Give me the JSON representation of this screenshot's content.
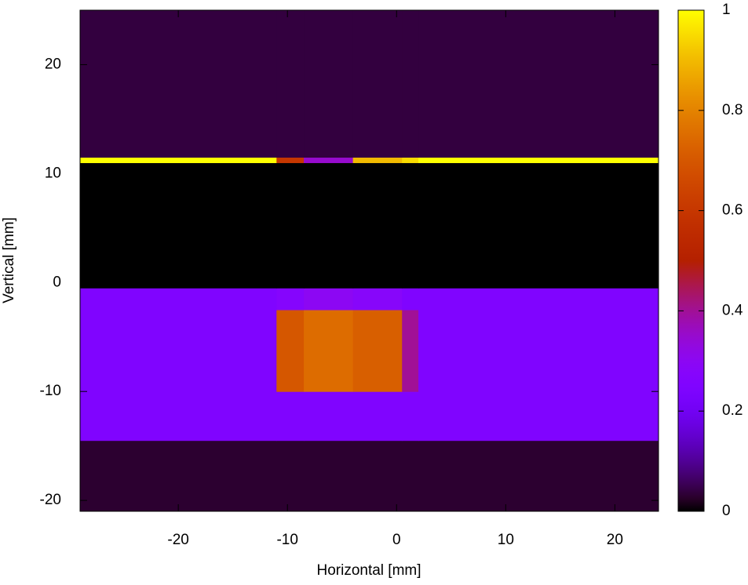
{
  "chart_data": {
    "type": "heatmap",
    "x_label": "Horizontal [mm]",
    "y_label": "Vertical [mm]",
    "x_edges": [
      -29,
      -11,
      -8.5,
      -4,
      0.5,
      2,
      24
    ],
    "y_edges": [
      -21,
      -14.5,
      -10,
      -2.5,
      -0.5,
      11,
      11.5,
      25
    ],
    "z": [
      [
        0.03,
        0.03,
        0.03,
        0.03,
        0.03,
        0.03
      ],
      [
        0.25,
        0.25,
        0.25,
        0.25,
        0.25,
        0.25
      ],
      [
        0.25,
        0.7,
        0.75,
        0.72,
        0.4,
        0.25
      ],
      [
        0.25,
        0.27,
        0.3,
        0.28,
        0.25,
        0.25
      ],
      [
        0,
        0,
        0,
        0,
        0,
        0
      ],
      [
        1,
        0.6,
        0.35,
        0.9,
        0.95,
        1
      ],
      [
        0.04,
        0.04,
        0.04,
        0.04,
        0.04,
        0.04
      ]
    ],
    "palette": "gnuplot",
    "xlim": [
      -29,
      24
    ],
    "ylim": [
      -21,
      25
    ],
    "zlim": [
      0,
      1
    ],
    "xticks": [
      -20,
      -10,
      0,
      10,
      20
    ],
    "yticks": [
      -20,
      -10,
      0,
      10,
      20
    ],
    "zticks": [
      0,
      0.2,
      0.4,
      0.6,
      0.8,
      1
    ]
  }
}
